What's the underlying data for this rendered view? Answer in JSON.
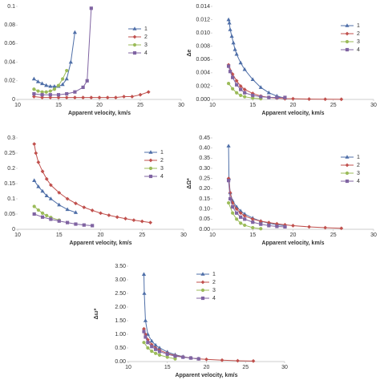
{
  "chart_data": [
    {
      "type": "line",
      "x_label": "Apparent velocity, km/s",
      "xlim": [
        10,
        30
      ],
      "xticks": [
        10,
        15,
        20,
        25,
        30
      ],
      "ylim": [
        0,
        0.1
      ],
      "yticks": [
        0,
        0.02,
        0.04,
        0.06,
        0.08,
        0.1
      ],
      "series": [
        {
          "name": "1",
          "color": "#4f6fa8",
          "marker": "triangle",
          "x": [
            12,
            12.5,
            13,
            13.5,
            14,
            14.5,
            15,
            15.5,
            16,
            16.5,
            17
          ],
          "values": [
            0.022,
            0.019,
            0.017,
            0.015,
            0.014,
            0.014,
            0.014,
            0.016,
            0.022,
            0.04,
            0.072
          ]
        },
        {
          "name": "2",
          "color": "#c0504d",
          "marker": "diamond",
          "x": [
            12,
            13,
            14,
            15,
            16,
            17,
            18,
            19,
            20,
            21,
            22,
            23,
            24,
            25,
            26
          ],
          "values": [
            0.003,
            0.002,
            0.002,
            0.002,
            0.002,
            0.002,
            0.002,
            0.002,
            0.002,
            0.002,
            0.002,
            0.003,
            0.003,
            0.005,
            0.008
          ]
        },
        {
          "name": "3",
          "color": "#9bbb59",
          "marker": "circle",
          "x": [
            12,
            12.5,
            13,
            13.5,
            14,
            14.5,
            15,
            15.5,
            16
          ],
          "values": [
            0.011,
            0.009,
            0.008,
            0.008,
            0.009,
            0.011,
            0.015,
            0.022,
            0.031
          ]
        },
        {
          "name": "4",
          "color": "#8064a2",
          "marker": "square",
          "x": [
            12,
            13,
            14,
            15,
            16,
            17,
            18,
            18.5,
            19
          ],
          "values": [
            0.006,
            0.005,
            0.005,
            0.005,
            0.006,
            0.008,
            0.013,
            0.02,
            0.098
          ]
        }
      ]
    },
    {
      "type": "line",
      "x_label": "Apparent velocity, km/s",
      "y_label": "Δe",
      "xlim": [
        10,
        30
      ],
      "xticks": [
        10,
        15,
        20,
        25,
        30
      ],
      "ylim": [
        0,
        0.014
      ],
      "yticks": [
        {
          "value": 0,
          "label": "0.000"
        },
        {
          "value": 0.002,
          "label": "0.002"
        },
        {
          "value": 0.004,
          "label": "0.004"
        },
        {
          "value": 0.006,
          "label": "0.006"
        },
        {
          "value": 0.008,
          "label": "0.008"
        },
        {
          "value": 0.01,
          "label": "0.010"
        },
        {
          "value": 0.012,
          "label": "0.012"
        },
        {
          "value": 0.014,
          "label": "0.014"
        }
      ],
      "series": [
        {
          "name": "1",
          "color": "#4f6fa8",
          "marker": "triangle",
          "x": [
            12,
            12.1,
            12.2,
            12.4,
            12.6,
            12.8,
            13,
            13.5,
            14,
            15,
            16,
            17,
            18,
            19
          ],
          "values": [
            0.012,
            0.0115,
            0.0105,
            0.0095,
            0.0085,
            0.0075,
            0.0068,
            0.0055,
            0.0045,
            0.003,
            0.0018,
            0.001,
            0.0005,
            0.0002
          ]
        },
        {
          "name": "2",
          "color": "#c0504d",
          "marker": "diamond",
          "x": [
            12,
            12.5,
            13,
            13.5,
            14,
            15,
            16,
            17,
            18,
            19,
            20,
            22,
            24,
            26
          ],
          "values": [
            0.0052,
            0.0038,
            0.0028,
            0.002,
            0.0015,
            0.0009,
            0.0005,
            0.0003,
            0.0002,
            0.0001,
            0.0001,
            5e-05,
            3e-05,
            2e-05
          ]
        },
        {
          "name": "3",
          "color": "#9bbb59",
          "marker": "circle",
          "x": [
            12,
            12.5,
            13,
            13.5,
            14,
            15,
            16
          ],
          "values": [
            0.0024,
            0.0016,
            0.001,
            0.0006,
            0.0004,
            0.0002,
            0.0001
          ]
        },
        {
          "name": "4",
          "color": "#8064a2",
          "marker": "square",
          "x": [
            12,
            12.2,
            12.5,
            13,
            13.5,
            14,
            15,
            16,
            17,
            18,
            19
          ],
          "values": [
            0.005,
            0.0042,
            0.0033,
            0.0022,
            0.0015,
            0.001,
            0.0006,
            0.0004,
            0.0003,
            0.0003,
            0.0003
          ]
        }
      ]
    },
    {
      "type": "line",
      "x_label": "Apparent velocity, km/s",
      "xlim": [
        10,
        30
      ],
      "xticks": [
        10,
        15,
        20,
        25,
        30
      ],
      "ylim": [
        0,
        0.3
      ],
      "yticks": [
        0,
        0.05,
        0.1,
        0.15,
        0.2,
        0.25,
        0.3
      ],
      "series": [
        {
          "name": "1",
          "color": "#4f6fa8",
          "marker": "triangle",
          "x": [
            12,
            12.5,
            13,
            13.5,
            14,
            15,
            16,
            17
          ],
          "values": [
            0.16,
            0.14,
            0.125,
            0.11,
            0.1,
            0.08,
            0.065,
            0.055
          ]
        },
        {
          "name": "2",
          "color": "#c0504d",
          "marker": "diamond",
          "x": [
            12,
            12.2,
            12.5,
            13,
            13.5,
            14,
            15,
            16,
            17,
            18,
            19,
            20,
            21,
            22,
            23,
            24,
            25,
            26
          ],
          "values": [
            0.28,
            0.25,
            0.22,
            0.19,
            0.165,
            0.145,
            0.12,
            0.1,
            0.085,
            0.072,
            0.062,
            0.053,
            0.046,
            0.04,
            0.035,
            0.03,
            0.026,
            0.022
          ]
        },
        {
          "name": "3",
          "color": "#9bbb59",
          "marker": "circle",
          "x": [
            12,
            12.5,
            13,
            13.5,
            14,
            15
          ],
          "values": [
            0.075,
            0.063,
            0.053,
            0.045,
            0.039,
            0.03
          ]
        },
        {
          "name": "4",
          "color": "#8064a2",
          "marker": "square",
          "x": [
            12,
            13,
            14,
            15,
            16,
            17,
            18,
            19
          ],
          "values": [
            0.05,
            0.04,
            0.033,
            0.027,
            0.022,
            0.017,
            0.014,
            0.012
          ]
        }
      ]
    },
    {
      "type": "line",
      "x_label": "Apparent velocity, km/s",
      "y_label": "ΔΩ*",
      "xlim": [
        10,
        30
      ],
      "xticks": [
        10,
        15,
        20,
        25,
        30
      ],
      "ylim": [
        0,
        0.45
      ],
      "yticks": [
        {
          "value": 0,
          "label": "0.00"
        },
        {
          "value": 0.05,
          "label": "0.05"
        },
        {
          "value": 0.1,
          "label": "0.10"
        },
        {
          "value": 0.15,
          "label": "0.15"
        },
        {
          "value": 0.2,
          "label": "0.20"
        },
        {
          "value": 0.25,
          "label": "0.25"
        },
        {
          "value": 0.3,
          "label": "0.30"
        },
        {
          "value": 0.35,
          "label": "0.35"
        },
        {
          "value": 0.4,
          "label": "0.40"
        },
        {
          "value": 0.45,
          "label": "0.45"
        }
      ],
      "series": [
        {
          "name": "1",
          "color": "#4f6fa8",
          "marker": "triangle",
          "x": [
            12,
            12.05,
            12.2,
            12.5,
            13,
            13.5,
            14,
            15,
            16,
            17,
            18,
            19
          ],
          "values": [
            0.41,
            0.25,
            0.18,
            0.14,
            0.11,
            0.09,
            0.075,
            0.055,
            0.04,
            0.03,
            0.022,
            0.018
          ]
        },
        {
          "name": "2",
          "color": "#c0504d",
          "marker": "diamond",
          "x": [
            12,
            12.2,
            12.5,
            13,
            13.5,
            14,
            15,
            16,
            17,
            18,
            19,
            20,
            22,
            24,
            26
          ],
          "values": [
            0.25,
            0.18,
            0.13,
            0.1,
            0.08,
            0.066,
            0.05,
            0.04,
            0.033,
            0.027,
            0.022,
            0.018,
            0.012,
            0.008,
            0.005
          ]
        },
        {
          "name": "3",
          "color": "#9bbb59",
          "marker": "circle",
          "x": [
            12,
            12.5,
            13,
            13.5,
            14,
            15,
            16
          ],
          "values": [
            0.13,
            0.08,
            0.05,
            0.03,
            0.02,
            0.008,
            0.003
          ]
        },
        {
          "name": "4",
          "color": "#8064a2",
          "marker": "square",
          "x": [
            12,
            12.2,
            12.5,
            13,
            13.5,
            14,
            15,
            16,
            17,
            18,
            19
          ],
          "values": [
            0.24,
            0.15,
            0.11,
            0.08,
            0.06,
            0.05,
            0.035,
            0.025,
            0.018,
            0.014,
            0.012
          ]
        }
      ]
    },
    {
      "type": "line",
      "x_label": "Apparent velocity, km/s",
      "y_label": "Δω*",
      "xlim": [
        10,
        30
      ],
      "xticks": [
        10,
        15,
        20,
        25,
        30
      ],
      "ylim": [
        0,
        3.5
      ],
      "yticks": [
        {
          "value": 0,
          "label": "0.00"
        },
        {
          "value": 0.5,
          "label": "0.50"
        },
        {
          "value": 1,
          "label": "1.00"
        },
        {
          "value": 1.5,
          "label": "1.50"
        },
        {
          "value": 2,
          "label": "2.00"
        },
        {
          "value": 2.5,
          "label": "2.50"
        },
        {
          "value": 3,
          "label": "3.00"
        },
        {
          "value": 3.5,
          "label": "3.50"
        }
      ],
      "series": [
        {
          "name": "1",
          "color": "#4f6fa8",
          "marker": "triangle",
          "x": [
            12,
            12.05,
            12.2,
            12.5,
            13,
            13.5,
            14,
            15,
            16,
            17,
            18,
            19
          ],
          "values": [
            3.2,
            2.5,
            1.5,
            1.0,
            0.75,
            0.6,
            0.5,
            0.35,
            0.25,
            0.18,
            0.13,
            0.1
          ]
        },
        {
          "name": "2",
          "color": "#c0504d",
          "marker": "diamond",
          "x": [
            12,
            12.2,
            12.5,
            13,
            13.5,
            14,
            15,
            16,
            17,
            18,
            19,
            20,
            22,
            24,
            26
          ],
          "values": [
            1.2,
            1.0,
            0.8,
            0.62,
            0.5,
            0.42,
            0.3,
            0.22,
            0.17,
            0.13,
            0.1,
            0.08,
            0.05,
            0.03,
            0.02
          ]
        },
        {
          "name": "3",
          "color": "#9bbb59",
          "marker": "circle",
          "x": [
            12,
            12.5,
            13,
            13.5,
            14,
            15,
            16
          ],
          "values": [
            0.7,
            0.5,
            0.38,
            0.3,
            0.24,
            0.16,
            0.1
          ]
        },
        {
          "name": "4",
          "color": "#8064a2",
          "marker": "square",
          "x": [
            12,
            12.2,
            12.5,
            13,
            13.5,
            14,
            15,
            16,
            17,
            18,
            19
          ],
          "values": [
            1.1,
            0.9,
            0.7,
            0.55,
            0.45,
            0.37,
            0.27,
            0.2,
            0.16,
            0.13,
            0.1
          ]
        }
      ]
    }
  ]
}
